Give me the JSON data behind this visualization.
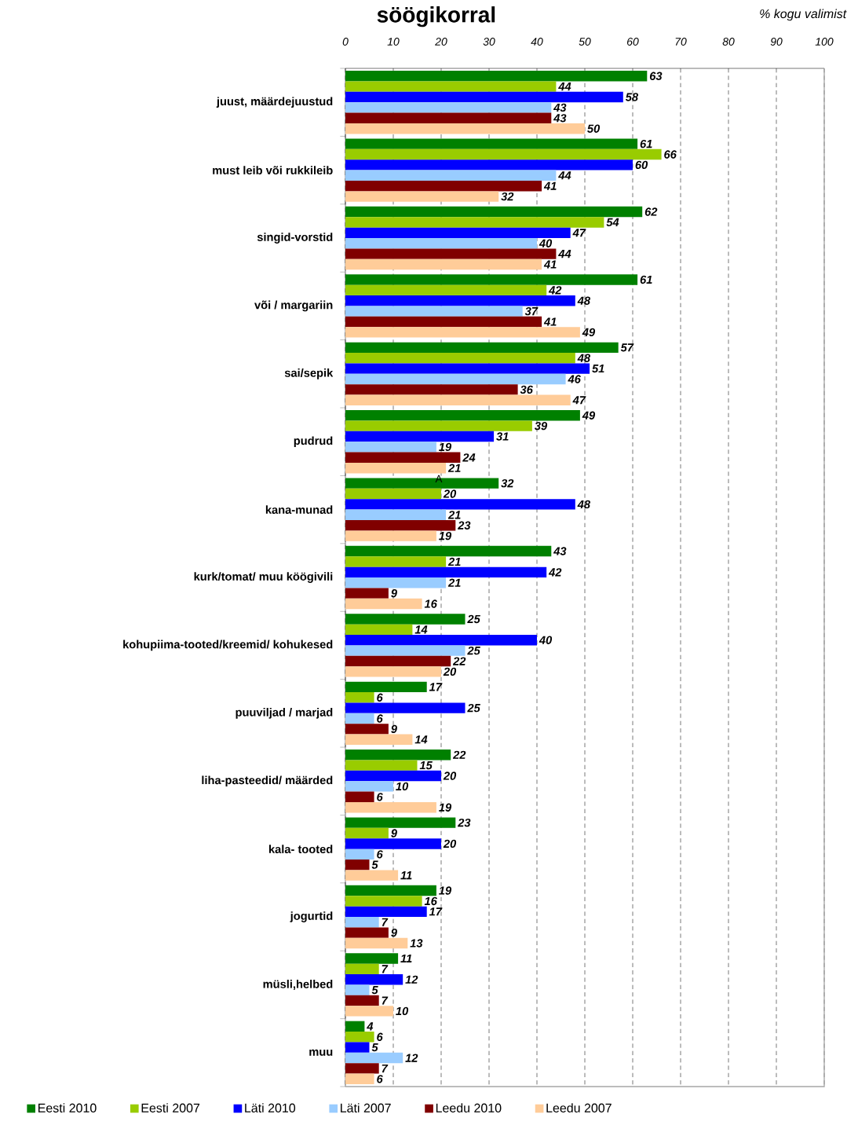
{
  "chart_data": {
    "type": "bar",
    "orientation": "horizontal",
    "title": "söögikorral",
    "xlabel": "% kogu valimist",
    "categories": [
      "juust, määrdejuustud",
      "must leib või rukkileib",
      "singid-vorstid",
      "või / margariin",
      "sai/sepik",
      "pudrud",
      "kana-munad",
      "kurk/tomat/ muu köögivili",
      "kohupiima-tooted/kreemid/ kohukesed",
      "puuviljad / marjad",
      "liha-pasteedid/ määrded",
      "kala- tooted",
      "jogurtid",
      "müsli,helbed",
      "muu"
    ],
    "series": [
      {
        "name": "Eesti 2010",
        "color": "#008000",
        "values": [
          63,
          61,
          62,
          61,
          57,
          49,
          32,
          43,
          25,
          17,
          22,
          23,
          19,
          11,
          4
        ]
      },
      {
        "name": "Eesti 2007",
        "color": "#99cc00",
        "values": [
          44,
          66,
          54,
          42,
          48,
          39,
          20,
          21,
          14,
          6,
          15,
          9,
          16,
          7,
          6
        ]
      },
      {
        "name": "Läti 2010",
        "color": "#0000ff",
        "values": [
          58,
          60,
          47,
          48,
          51,
          31,
          48,
          42,
          40,
          25,
          20,
          20,
          17,
          12,
          5
        ]
      },
      {
        "name": "Läti 2007",
        "color": "#99ccff",
        "values": [
          43,
          44,
          40,
          37,
          46,
          19,
          21,
          21,
          25,
          6,
          10,
          6,
          7,
          5,
          12
        ]
      },
      {
        "name": "Leedu 2010",
        "color": "#800000",
        "values": [
          43,
          41,
          44,
          41,
          36,
          24,
          23,
          9,
          22,
          9,
          6,
          5,
          9,
          7,
          7
        ]
      },
      {
        "name": "Leedu 2007",
        "color": "#ffcc99",
        "values": [
          50,
          32,
          41,
          49,
          47,
          21,
          19,
          16,
          20,
          14,
          19,
          11,
          13,
          10,
          6
        ]
      }
    ],
    "xlim": [
      0,
      100
    ],
    "xticks": [
      0,
      10,
      20,
      30,
      40,
      50,
      60,
      70,
      80,
      90,
      100
    ],
    "grid": "x",
    "legend": "bottom",
    "data_labels": true,
    "annotations": [
      "A"
    ]
  }
}
